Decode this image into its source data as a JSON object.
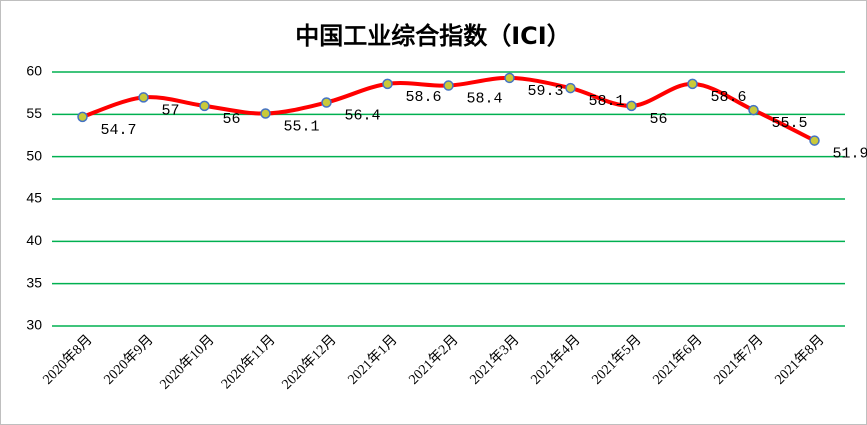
{
  "chart_data": {
    "type": "line",
    "title": "中国工业综合指数（ICI）",
    "categories": [
      "2020年8月",
      "2020年9月",
      "2020年10月",
      "2020年11月",
      "2020年12月",
      "2021年1月",
      "2021年2月",
      "2021年3月",
      "2021年4月",
      "2021年5月",
      "2021年6月",
      "2021年7月",
      "2021年8月"
    ],
    "values": [
      54.7,
      57.0,
      56.0,
      55.1,
      56.4,
      58.6,
      58.4,
      59.3,
      58.1,
      56.0,
      58.6,
      55.5,
      51.9
    ],
    "color": "#ff0000",
    "marker_color": "#c9c93a",
    "marker_edge": "#4472c4",
    "smooth": true,
    "ylim": [
      30,
      60
    ],
    "yticks": [
      30,
      35,
      40,
      45,
      50,
      55,
      60
    ],
    "grid": true,
    "grid_color": "#00b050"
  }
}
